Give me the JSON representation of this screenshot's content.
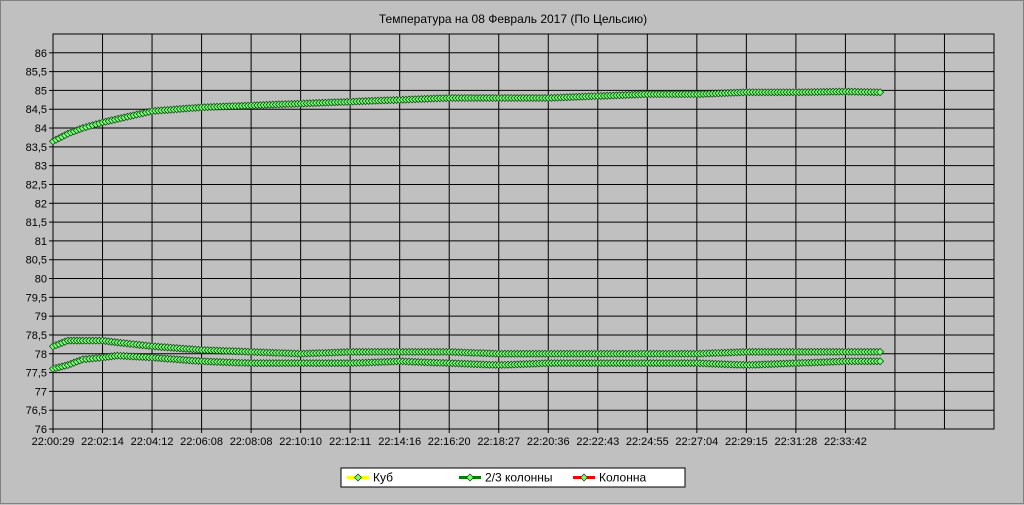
{
  "chart_data": {
    "type": "line",
    "title": "Температура на 08 Февраль 2017 (По Цельсию)",
    "xlabel": "",
    "ylabel": "",
    "ylim": [
      76,
      86.5
    ],
    "y_ticks": [
      "76",
      "76,5",
      "77",
      "77,5",
      "78",
      "78,5",
      "79",
      "79,5",
      "80",
      "80,5",
      "81",
      "81,5",
      "82",
      "82,5",
      "83",
      "83,5",
      "84",
      "84,5",
      "85",
      "85,5",
      "86"
    ],
    "x_categories": [
      "22:00:29",
      "22:02:14",
      "22:04:12",
      "22:06:08",
      "22:08:08",
      "22:10:10",
      "22:12:11",
      "22:14:16",
      "22:16:20",
      "22:18:27",
      "22:20:36",
      "22:22:43",
      "22:24:55",
      "22:27:04",
      "22:29:15",
      "22:31:28",
      "22:33:42"
    ],
    "x_data_end": 16.7,
    "x_axis_end": 19,
    "grid": true,
    "legend_position": "bottom-center",
    "series": [
      {
        "name": "Куб",
        "color": "#ffff00",
        "marker_color": "#7cfc7c",
        "x": [
          0,
          0.3,
          0.6,
          1.0,
          1.5,
          2,
          3,
          4,
          5,
          6,
          7,
          8,
          9,
          10,
          11,
          12,
          13,
          14,
          15,
          16,
          16.7
        ],
        "values": [
          83.65,
          83.85,
          84.0,
          84.15,
          84.3,
          84.45,
          84.55,
          84.6,
          84.65,
          84.7,
          84.75,
          84.8,
          84.8,
          84.8,
          84.85,
          84.9,
          84.9,
          84.95,
          84.95,
          84.97,
          84.95
        ]
      },
      {
        "name": "2/3 колонны",
        "color": "#008000",
        "marker_color": "#7cfc7c",
        "x": [
          0,
          0.3,
          0.6,
          1.0,
          1.3,
          2,
          3,
          4,
          5,
          6,
          7,
          8,
          9,
          10,
          11,
          12,
          13,
          14,
          15,
          16,
          16.7
        ],
        "values": [
          78.2,
          78.35,
          78.35,
          78.35,
          78.3,
          78.2,
          78.1,
          78.05,
          78.0,
          78.05,
          78.05,
          78.05,
          78.0,
          78.0,
          78.0,
          78.0,
          78.0,
          78.05,
          78.05,
          78.05,
          78.05
        ]
      },
      {
        "name": "Колонна",
        "color": "#ff0000",
        "marker_color": "#7cfc7c",
        "x": [
          0,
          0.3,
          0.6,
          1.0,
          1.3,
          2,
          3,
          4,
          5,
          6,
          7,
          8,
          9,
          10,
          11,
          12,
          13,
          14,
          15,
          16,
          16.7
        ],
        "values": [
          77.6,
          77.7,
          77.85,
          77.9,
          77.95,
          77.9,
          77.8,
          77.75,
          77.75,
          77.75,
          77.8,
          77.75,
          77.7,
          77.75,
          77.75,
          77.75,
          77.75,
          77.7,
          77.75,
          77.8,
          77.8
        ]
      }
    ]
  }
}
